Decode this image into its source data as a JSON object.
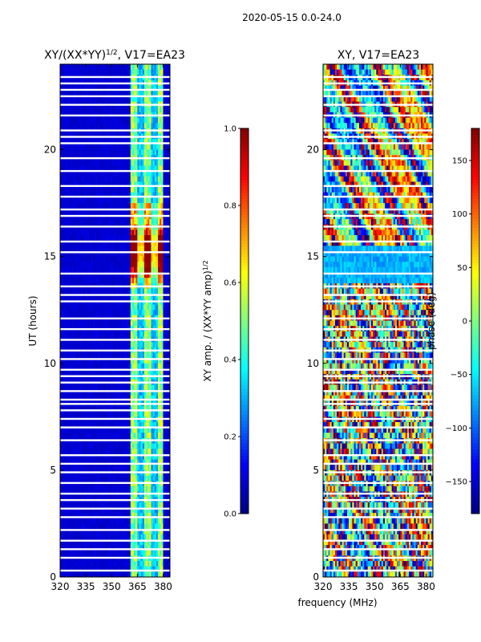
{
  "suptitle": "2020-05-15 0.0-24.0",
  "colors": {
    "jet": [
      "#00007f",
      "#0000ff",
      "#007fff",
      "#00ffff",
      "#7fff7f",
      "#ffff00",
      "#ff7f00",
      "#ff0000",
      "#7f0000"
    ],
    "flag_color": "#ffffff",
    "frame": "#000000"
  },
  "chart_data": [
    {
      "type": "heatmap",
      "title_main": "XY/(XX*YY)",
      "title_sup": "1/2",
      "title_tail": ", V17=EA23",
      "xlabel": "",
      "ylabel": "UT (hours)",
      "x_ticks": [
        320,
        335,
        350,
        365,
        380
      ],
      "y_ticks": [
        0,
        5,
        10,
        15,
        20
      ],
      "xlim": [
        320,
        384
      ],
      "ylim": [
        0,
        24
      ],
      "value_range": [
        0,
        1
      ],
      "active_band_mhz": [
        361,
        380
      ],
      "peak_hours": [
        15.0
      ],
      "colorbar": {
        "label": "XY amp. / (XX*YY amp)",
        "label_sup": "1/2",
        "range": [
          0,
          1
        ],
        "ticks": [
          "0.0",
          "0.2",
          "0.4",
          "0.6",
          "0.8",
          "1.0"
        ]
      }
    },
    {
      "type": "heatmap",
      "title_main": "XY, V17=EA23",
      "xlabel": "frequency (MHz)",
      "ylabel": "",
      "x_ticks": [
        320,
        335,
        350,
        365,
        380
      ],
      "y_ticks": [
        0,
        5,
        10,
        15,
        20
      ],
      "xlim": [
        320,
        384
      ],
      "ylim": [
        0,
        24
      ],
      "value_range": [
        -180,
        180
      ],
      "colorbar": {
        "label": "phase (deg)",
        "range": [
          -180,
          180
        ],
        "ticks": [
          "−150",
          "−100",
          "−50",
          "0",
          "50",
          "100",
          "150"
        ]
      }
    }
  ],
  "flagged_hours": [
    0.3,
    0.9,
    1.3,
    1.7,
    2.2,
    2.8,
    3.2,
    3.6,
    3.9,
    4.4,
    4.9,
    5.3,
    5.7,
    6.4,
    7.0,
    7.4,
    7.8,
    8.1,
    8.3,
    8.7,
    9.1,
    9.4,
    9.7,
    10.2,
    10.6,
    11.1,
    11.6,
    12.1,
    12.9,
    13.2,
    13.6,
    14.2,
    15.2,
    15.7,
    16.4,
    16.9,
    17.2,
    17.8,
    18.3,
    19.0,
    19.6,
    20.3,
    20.6,
    20.9,
    21.6,
    22.1,
    22.5,
    22.8,
    23.1,
    23.4
  ]
}
